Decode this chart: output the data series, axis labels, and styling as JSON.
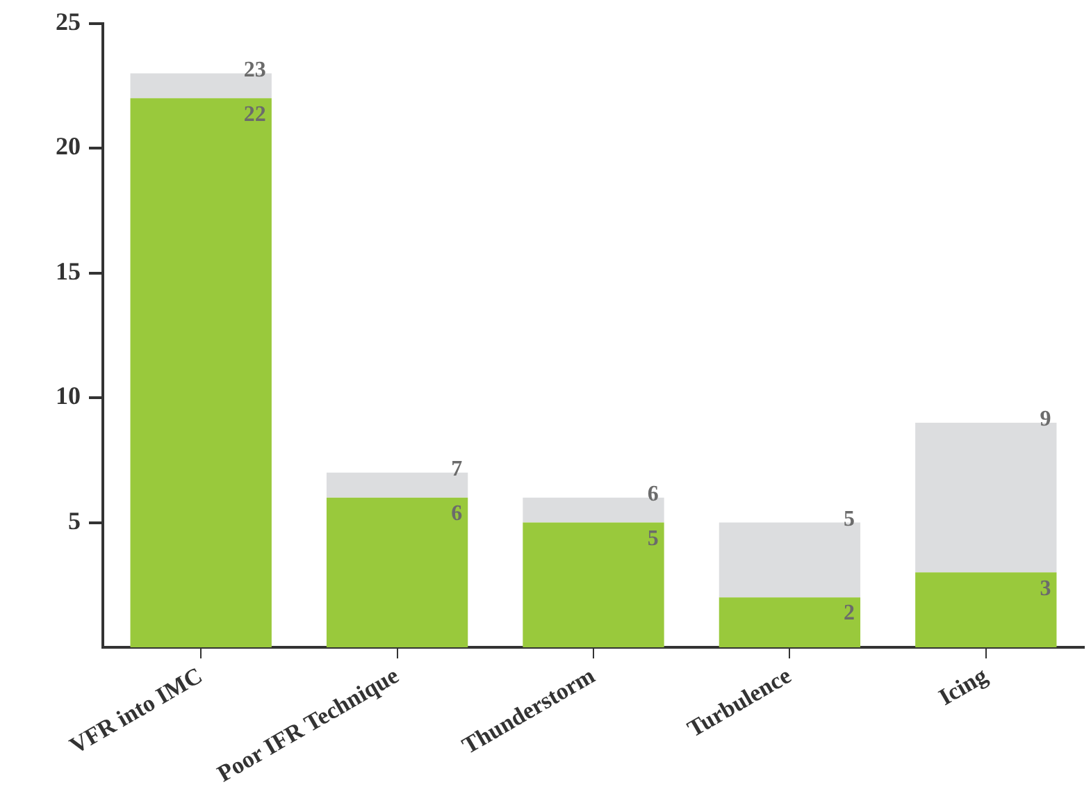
{
  "chart_data": {
    "type": "bar",
    "categories": [
      "VFR into IMC",
      "Poor IFR Technique",
      "Thunderstorm",
      "Turbulence",
      "Icing"
    ],
    "series": [
      {
        "color": "#99c93c",
        "values": [
          22,
          6,
          5,
          2,
          3
        ],
        "value_labels": [
          "22",
          "6",
          "5",
          "2",
          "3"
        ]
      },
      {
        "color": "#dcdddf",
        "values": [
          1,
          1,
          1,
          3,
          6
        ]
      }
    ],
    "stacked": true,
    "totals": [
      "23",
      "7",
      "6",
      "5",
      "9"
    ],
    "ylim": [
      0,
      25
    ],
    "yticks": [
      5,
      10,
      15,
      20,
      25
    ],
    "legend": false,
    "grid": false
  }
}
